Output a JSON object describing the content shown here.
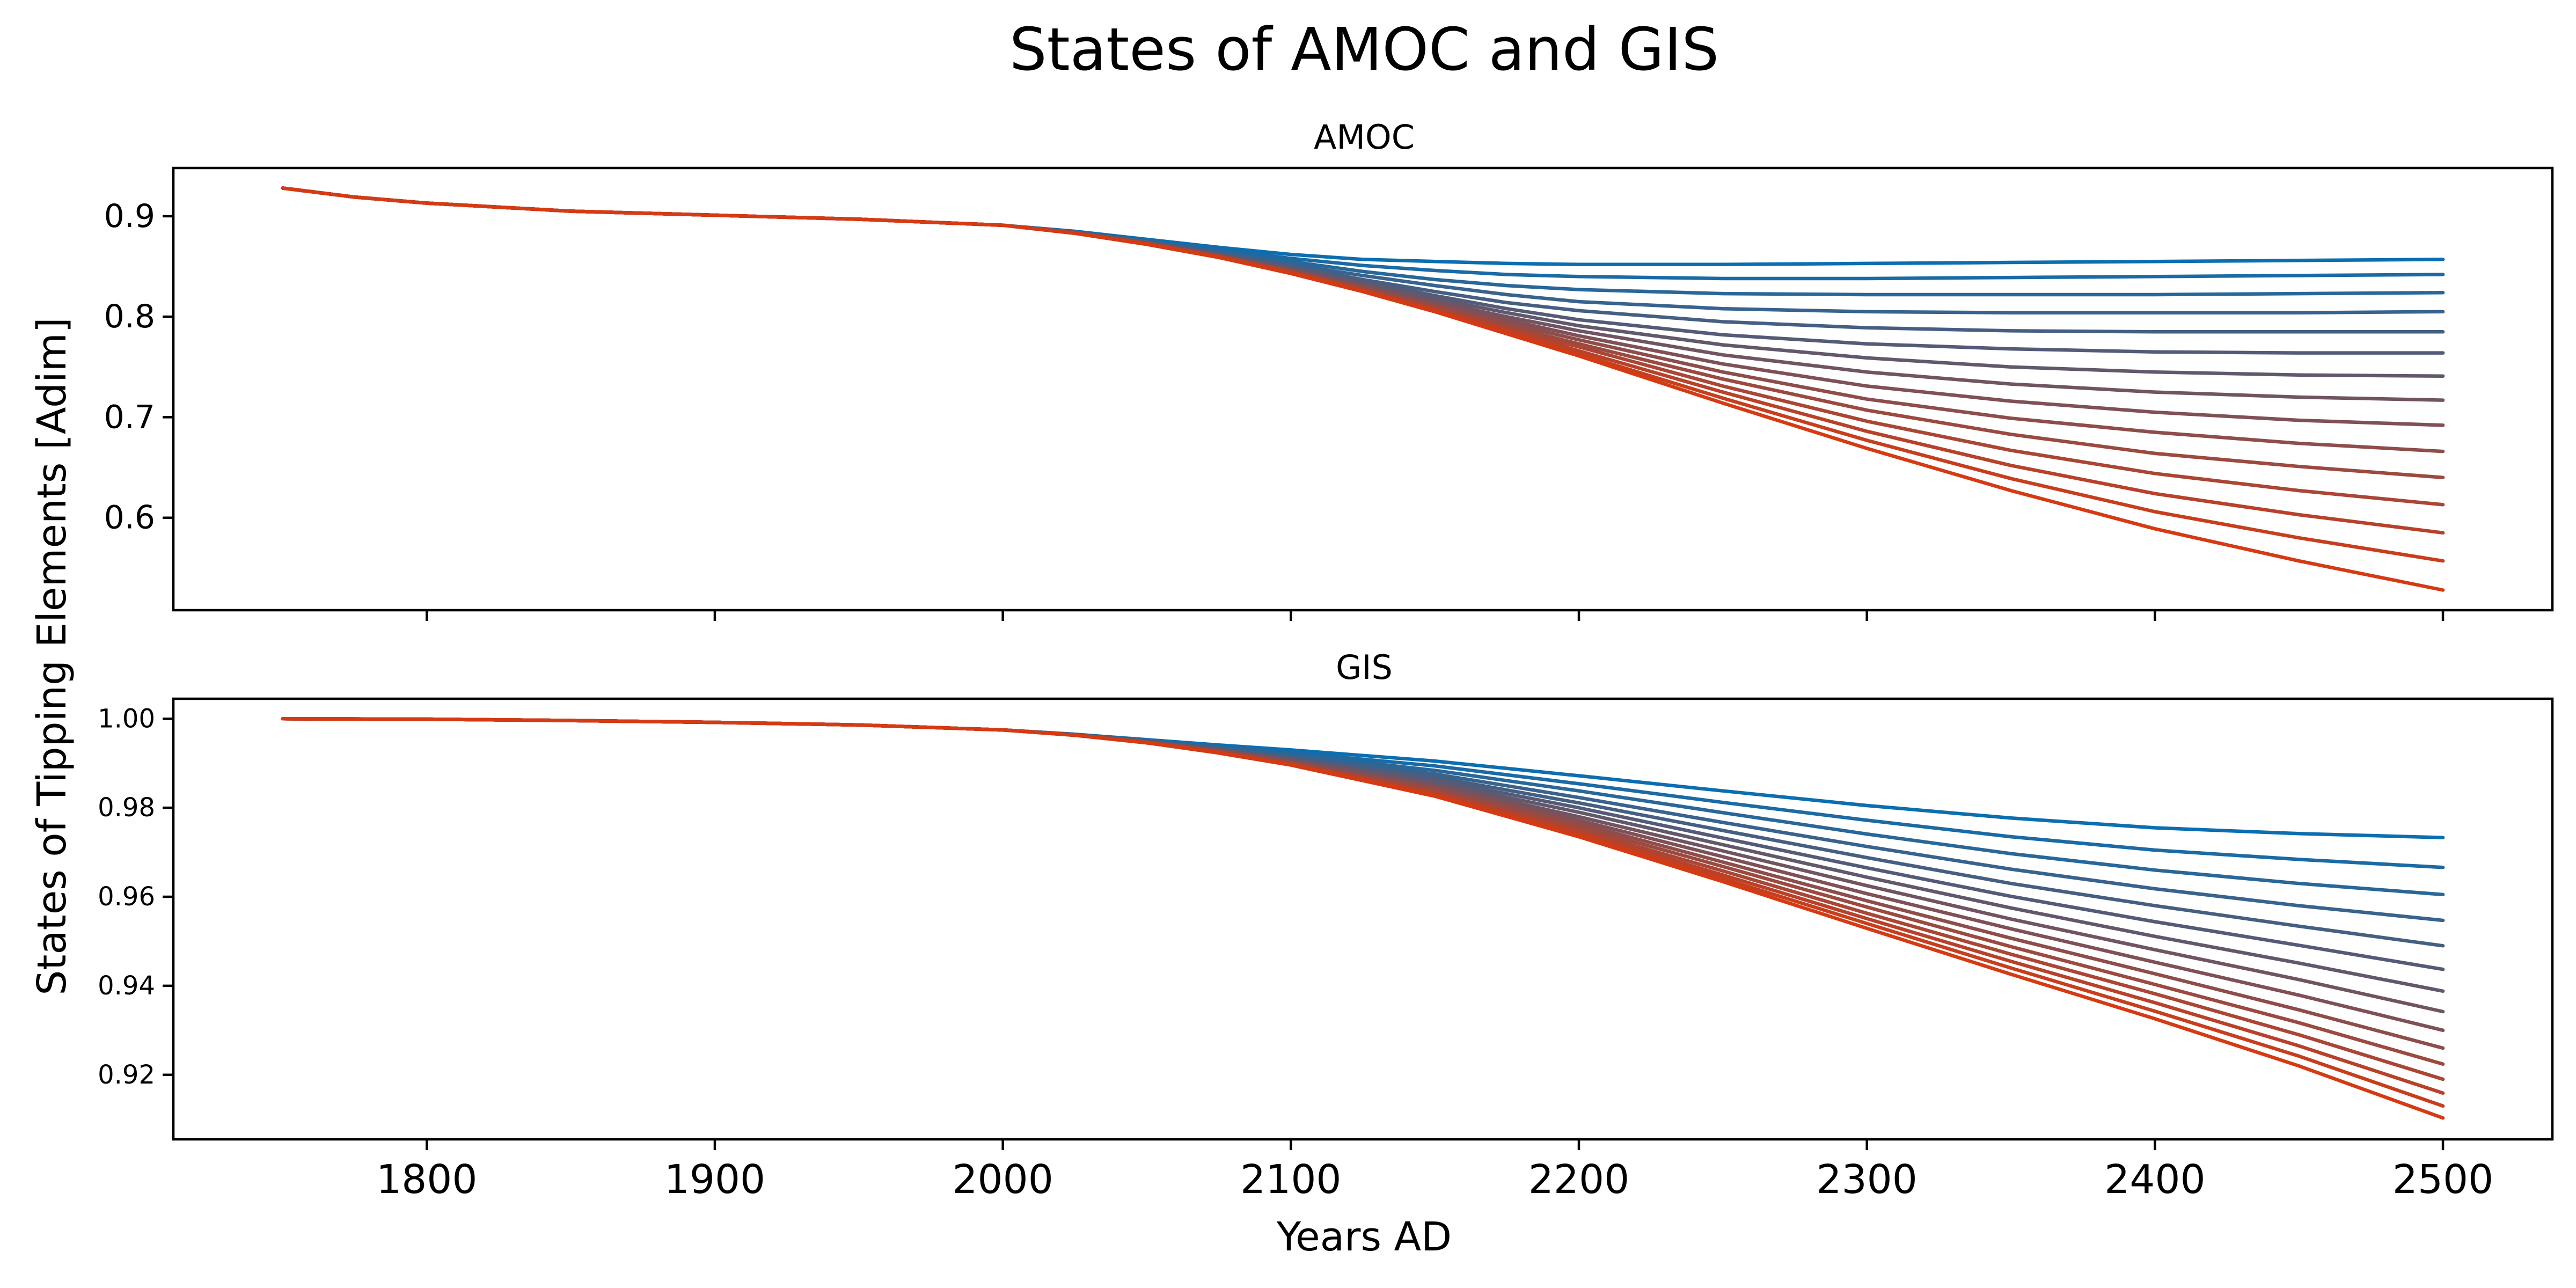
{
  "chart_data": {
    "type": "line",
    "title": "States of AMOC and GIS",
    "ylabel": "States of Tipping Elements [Adim]",
    "xlabel": "Years AD",
    "xlim": [
      1712,
      2538
    ],
    "xticks": [
      1800,
      1900,
      2000,
      2100,
      2200,
      2300,
      2400,
      2500
    ],
    "color_start": "#0b6eb0",
    "color_end": "#d63a12",
    "grid": false,
    "panels": [
      {
        "title": "AMOC",
        "ylim": [
          0.508,
          0.948
        ],
        "yticks": [
          0.6,
          0.7,
          0.8,
          0.9
        ],
        "ytick_labels": [
          "0.6",
          "0.7",
          "0.8",
          "0.9"
        ],
        "x": [
          1750,
          1775,
          1800,
          1850,
          1900,
          1950,
          2000,
          2025,
          2050,
          2075,
          2100,
          2125,
          2150,
          2175,
          2200,
          2250,
          2300,
          2350,
          2400,
          2450,
          2500
        ],
        "series": [
          {
            "values": [
              0.928,
              0.919,
              0.913,
              0.905,
              0.901,
              0.897,
              0.891,
              0.885,
              0.877,
              0.869,
              0.862,
              0.857,
              0.855,
              0.853,
              0.852,
              0.852,
              0.853,
              0.854,
              0.855,
              0.856,
              0.857
            ]
          },
          {
            "values": [
              0.928,
              0.919,
              0.913,
              0.905,
              0.901,
              0.897,
              0.891,
              0.884,
              0.876,
              0.867,
              0.858,
              0.851,
              0.846,
              0.842,
              0.84,
              0.838,
              0.838,
              0.839,
              0.84,
              0.841,
              0.842
            ]
          },
          {
            "values": [
              0.928,
              0.919,
              0.913,
              0.905,
              0.901,
              0.897,
              0.891,
              0.884,
              0.875,
              0.865,
              0.855,
              0.845,
              0.837,
              0.831,
              0.827,
              0.823,
              0.822,
              0.822,
              0.822,
              0.823,
              0.824
            ]
          },
          {
            "values": [
              0.928,
              0.919,
              0.913,
              0.905,
              0.901,
              0.897,
              0.891,
              0.884,
              0.875,
              0.864,
              0.852,
              0.841,
              0.831,
              0.822,
              0.815,
              0.808,
              0.805,
              0.804,
              0.804,
              0.804,
              0.805
            ]
          },
          {
            "values": [
              0.928,
              0.919,
              0.913,
              0.905,
              0.901,
              0.897,
              0.891,
              0.884,
              0.874,
              0.863,
              0.85,
              0.837,
              0.825,
              0.814,
              0.806,
              0.795,
              0.789,
              0.786,
              0.785,
              0.785,
              0.785
            ]
          },
          {
            "values": [
              0.928,
              0.919,
              0.913,
              0.905,
              0.901,
              0.897,
              0.891,
              0.884,
              0.874,
              0.862,
              0.849,
              0.835,
              0.821,
              0.808,
              0.797,
              0.782,
              0.773,
              0.768,
              0.765,
              0.764,
              0.764
            ]
          },
          {
            "values": [
              0.928,
              0.919,
              0.913,
              0.905,
              0.901,
              0.897,
              0.891,
              0.884,
              0.874,
              0.861,
              0.848,
              0.833,
              0.818,
              0.804,
              0.791,
              0.772,
              0.759,
              0.75,
              0.745,
              0.742,
              0.741
            ]
          },
          {
            "values": [
              0.928,
              0.919,
              0.913,
              0.905,
              0.901,
              0.897,
              0.891,
              0.884,
              0.873,
              0.861,
              0.847,
              0.831,
              0.815,
              0.8,
              0.786,
              0.762,
              0.745,
              0.733,
              0.725,
              0.72,
              0.717
            ]
          },
          {
            "values": [
              0.928,
              0.919,
              0.913,
              0.905,
              0.901,
              0.897,
              0.891,
              0.884,
              0.873,
              0.861,
              0.846,
              0.83,
              0.813,
              0.797,
              0.781,
              0.753,
              0.731,
              0.716,
              0.705,
              0.697,
              0.692
            ]
          },
          {
            "values": [
              0.928,
              0.919,
              0.913,
              0.905,
              0.901,
              0.897,
              0.891,
              0.883,
              0.873,
              0.86,
              0.845,
              0.829,
              0.811,
              0.794,
              0.777,
              0.745,
              0.718,
              0.699,
              0.685,
              0.674,
              0.666
            ]
          },
          {
            "values": [
              0.928,
              0.919,
              0.913,
              0.905,
              0.901,
              0.897,
              0.891,
              0.883,
              0.873,
              0.86,
              0.845,
              0.828,
              0.81,
              0.791,
              0.773,
              0.738,
              0.707,
              0.683,
              0.664,
              0.651,
              0.64
            ]
          },
          {
            "values": [
              0.928,
              0.919,
              0.913,
              0.905,
              0.901,
              0.897,
              0.891,
              0.883,
              0.873,
              0.86,
              0.845,
              0.827,
              0.808,
              0.789,
              0.77,
              0.731,
              0.696,
              0.667,
              0.644,
              0.627,
              0.613
            ]
          },
          {
            "values": [
              0.928,
              0.919,
              0.913,
              0.905,
              0.901,
              0.897,
              0.891,
              0.883,
              0.873,
              0.86,
              0.844,
              0.826,
              0.807,
              0.787,
              0.766,
              0.725,
              0.686,
              0.652,
              0.624,
              0.603,
              0.585
            ]
          },
          {
            "values": [
              0.928,
              0.919,
              0.913,
              0.905,
              0.901,
              0.897,
              0.891,
              0.883,
              0.872,
              0.859,
              0.844,
              0.826,
              0.806,
              0.785,
              0.763,
              0.719,
              0.677,
              0.639,
              0.606,
              0.58,
              0.557
            ]
          },
          {
            "values": [
              0.928,
              0.919,
              0.913,
              0.905,
              0.901,
              0.897,
              0.891,
              0.883,
              0.872,
              0.859,
              0.843,
              0.825,
              0.805,
              0.783,
              0.761,
              0.714,
              0.669,
              0.627,
              0.589,
              0.557,
              0.528
            ]
          }
        ]
      },
      {
        "title": "GIS",
        "ylim": [
          0.9055,
          1.0045
        ],
        "yticks": [
          0.92,
          0.94,
          0.96,
          0.98,
          1.0
        ],
        "ytick_labels": [
          "0.92",
          "0.94",
          "0.96",
          "0.98",
          "1.00"
        ],
        "x": [
          1750,
          1800,
          1850,
          1900,
          1950,
          2000,
          2025,
          2050,
          2075,
          2100,
          2150,
          2200,
          2250,
          2300,
          2350,
          2400,
          2450,
          2500
        ],
        "series": [
          {
            "values": [
              1.0,
              0.9999,
              0.9996,
              0.9992,
              0.9986,
              0.9975,
              0.9965,
              0.9953,
              0.9941,
              0.993,
              0.9905,
              0.9872,
              0.9838,
              0.9805,
              0.9777,
              0.9755,
              0.9742,
              0.9733
            ]
          },
          {
            "values": [
              1.0,
              0.9999,
              0.9996,
              0.9992,
              0.9986,
              0.9975,
              0.9965,
              0.9952,
              0.9938,
              0.9924,
              0.9894,
              0.9854,
              0.9812,
              0.9772,
              0.9735,
              0.9705,
              0.9684,
              0.9666
            ]
          },
          {
            "values": [
              1.0,
              0.9999,
              0.9996,
              0.9992,
              0.9986,
              0.9975,
              0.9965,
              0.9951,
              0.9936,
              0.992,
              0.9884,
              0.9838,
              0.9789,
              0.9741,
              0.9697,
              0.966,
              0.963,
              0.9605
            ]
          },
          {
            "values": [
              1.0,
              0.9999,
              0.9996,
              0.9992,
              0.9986,
              0.9975,
              0.9964,
              0.995,
              0.9934,
              0.9916,
              0.9876,
              0.9823,
              0.9767,
              0.9713,
              0.9662,
              0.9618,
              0.958,
              0.9547
            ]
          },
          {
            "values": [
              1.0,
              0.9999,
              0.9996,
              0.9992,
              0.9986,
              0.9975,
              0.9964,
              0.995,
              0.9932,
              0.9913,
              0.9869,
              0.9811,
              0.9749,
              0.9688,
              0.963,
              0.958,
              0.9534,
              0.949
            ]
          },
          {
            "values": [
              1.0,
              0.9999,
              0.9996,
              0.9992,
              0.9986,
              0.9975,
              0.9964,
              0.9949,
              0.9931,
              0.991,
              0.9863,
              0.98,
              0.9732,
              0.9665,
              0.9601,
              0.9544,
              0.9491,
              0.9437
            ]
          },
          {
            "values": [
              1.0,
              0.9999,
              0.9996,
              0.9992,
              0.9986,
              0.9975,
              0.9964,
              0.9949,
              0.993,
              0.9908,
              0.9857,
              0.979,
              0.9717,
              0.9644,
              0.9575,
              0.9511,
              0.9451,
              0.9388
            ]
          },
          {
            "values": [
              1.0,
              0.9999,
              0.9996,
              0.9992,
              0.9986,
              0.9975,
              0.9964,
              0.9948,
              0.9929,
              0.9906,
              0.9852,
              0.978,
              0.9703,
              0.9625,
              0.955,
              0.9481,
              0.9414,
              0.9342
            ]
          },
          {
            "values": [
              1.0,
              0.9999,
              0.9996,
              0.9992,
              0.9986,
              0.9975,
              0.9964,
              0.9948,
              0.9928,
              0.9904,
              0.9847,
              0.9772,
              0.969,
              0.9607,
              0.9528,
              0.9453,
              0.9379,
              0.93
            ]
          },
          {
            "values": [
              1.0,
              0.9999,
              0.9996,
              0.9992,
              0.9986,
              0.9975,
              0.9963,
              0.9947,
              0.9927,
              0.9902,
              0.9843,
              0.9765,
              0.9678,
              0.9591,
              0.9507,
              0.9427,
              0.9346,
              0.926
            ]
          },
          {
            "values": [
              1.0,
              0.9999,
              0.9996,
              0.9992,
              0.9986,
              0.9975,
              0.9963,
              0.9947,
              0.9926,
              0.99,
              0.9839,
              0.9758,
              0.9668,
              0.9577,
              0.9488,
              0.9403,
              0.9317,
              0.9224
            ]
          },
          {
            "values": [
              1.0,
              0.9999,
              0.9996,
              0.9992,
              0.9986,
              0.9975,
              0.9963,
              0.9947,
              0.9925,
              0.9899,
              0.9835,
              0.9751,
              0.9658,
              0.9563,
              0.9471,
              0.9382,
              0.929,
              0.919
            ]
          },
          {
            "values": [
              1.0,
              0.9999,
              0.9996,
              0.9992,
              0.9986,
              0.9975,
              0.9963,
              0.9946,
              0.9924,
              0.9898,
              0.9832,
              0.9745,
              0.9649,
              0.9551,
              0.9455,
              0.9362,
              0.9265,
              0.9159
            ]
          },
          {
            "values": [
              1.0,
              0.9999,
              0.9996,
              0.9992,
              0.9986,
              0.9975,
              0.9963,
              0.9946,
              0.9924,
              0.9897,
              0.9829,
              0.974,
              0.9641,
              0.954,
              0.944,
              0.9343,
              0.9242,
              0.913
            ]
          },
          {
            "values": [
              1.0,
              0.9999,
              0.9996,
              0.9992,
              0.9986,
              0.9975,
              0.9963,
              0.9946,
              0.9923,
              0.9896,
              0.9826,
              0.9735,
              0.9634,
              0.9529,
              0.9426,
              0.9326,
              0.922,
              0.9103
            ]
          }
        ]
      }
    ]
  }
}
